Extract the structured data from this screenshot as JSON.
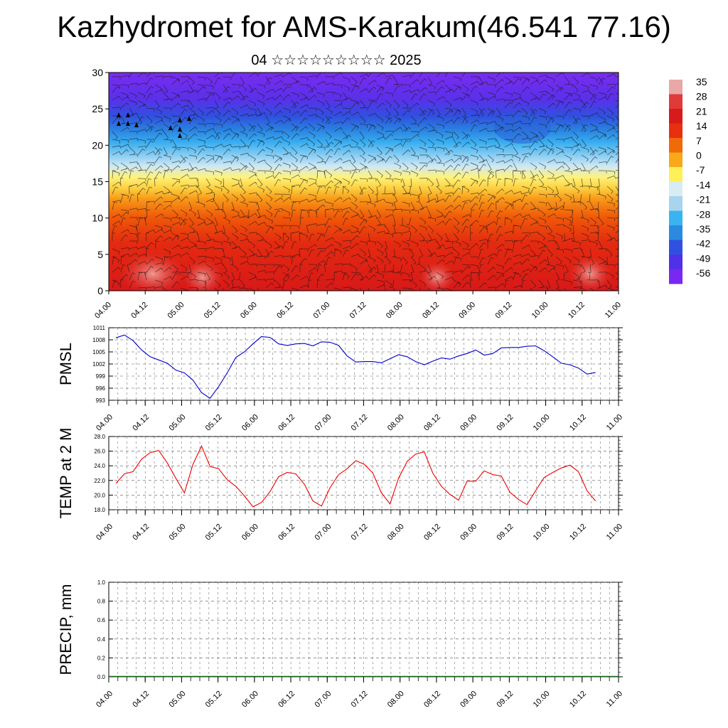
{
  "header": {
    "title": "Kazhydromet for AMS-Karakum(46.541 77.16)",
    "subtitle": "04 ☆☆☆☆☆☆☆☆☆ 2025"
  },
  "time_labels": [
    "04.00",
    "04.12",
    "05.00",
    "05.12",
    "06.00",
    "06.12",
    "07.00",
    "07.12",
    "08.00",
    "08.12",
    "09.00",
    "09.12",
    "10.00",
    "10.12",
    "11.00"
  ],
  "chart_data": [
    {
      "type": "heatmap",
      "name": "temperature-cross-section",
      "ylim": [
        0,
        30
      ],
      "yticks": [
        0,
        5,
        10,
        15,
        20,
        25,
        30
      ],
      "colorbar": {
        "labels": [
          "35",
          "28",
          "21",
          "14",
          "7",
          "0",
          "-7",
          "-14",
          "-21",
          "-28",
          "-35",
          "-42",
          "-49",
          "-56"
        ],
        "colors": [
          "#e8a8a8",
          "#e03a3a",
          "#d81a1a",
          "#e83010",
          "#f06a08",
          "#f8a818",
          "#fff05a",
          "#d8ecf4",
          "#a8d4ee",
          "#38b4f0",
          "#2a8ae0",
          "#3050e0",
          "#5030e8",
          "#7828f0"
        ]
      },
      "x_labels": [
        "04.00",
        "04.12",
        "05.00",
        "05.12",
        "06.00",
        "06.12",
        "07.00",
        "07.12",
        "08.00",
        "08.12",
        "09.00",
        "09.12",
        "10.00",
        "10.12",
        "11.00"
      ]
    },
    {
      "type": "line",
      "ylabel": "PMSL",
      "ylim": [
        993,
        1011
      ],
      "yticks": [
        993,
        996,
        999,
        1002,
        1005,
        1008,
        1011
      ],
      "line_color": "#0000cc",
      "x_labels": [
        "04.00",
        "04.12",
        "05.00",
        "05.12",
        "06.00",
        "06.12",
        "07.00",
        "07.12",
        "08.00",
        "08.12",
        "09.00",
        "09.12",
        "10.00",
        "10.12",
        "11.00"
      ],
      "values": [
        1008.5,
        1009.2,
        1007.8,
        1005.5,
        1003.8,
        1003.0,
        1002.2,
        1000.5,
        999.8,
        998.0,
        994.9,
        993.5,
        996.4,
        999.8,
        1003.6,
        1005.0,
        1007.0,
        1008.8,
        1008.6,
        1007.0,
        1006.6,
        1007.0,
        1007.1,
        1006.5,
        1007.5,
        1007.4,
        1006.6,
        1004.0,
        1002.5,
        1002.6,
        1002.6,
        1002.3,
        1003.3,
        1004.3,
        1003.8,
        1002.6,
        1001.8,
        1002.7,
        1003.5,
        1003.2,
        1004.0,
        1004.6,
        1005.5,
        1004.2,
        1004.6,
        1006.0,
        1006.1,
        1006.1,
        1006.4,
        1006.5,
        1005.3,
        1003.8,
        1002.2,
        1001.8,
        1001.0,
        999.5,
        999.9
      ]
    },
    {
      "type": "line",
      "ylabel": "TEMP at 2 M",
      "ylim": [
        18.0,
        28.0
      ],
      "yticks": [
        18.0,
        20.0,
        22.0,
        24.0,
        26.0,
        28.0
      ],
      "line_color": "#ee0000",
      "x_labels": [
        "04.00",
        "04.12",
        "05.00",
        "05.12",
        "06.00",
        "06.12",
        "07.00",
        "07.12",
        "08.00",
        "08.12",
        "09.00",
        "09.12",
        "10.00",
        "10.12",
        "11.00"
      ],
      "values": [
        21.6,
        22.9,
        23.2,
        24.9,
        25.8,
        26.1,
        24.4,
        22.3,
        20.3,
        24.2,
        26.7,
        23.9,
        23.6,
        22.1,
        21.2,
        19.9,
        18.4,
        19.0,
        20.5,
        22.5,
        23.1,
        22.9,
        21.5,
        19.2,
        18.5,
        21.0,
        22.8,
        23.6,
        24.7,
        24.2,
        23.0,
        20.3,
        18.8,
        22.3,
        24.6,
        25.6,
        25.9,
        23.0,
        21.2,
        20.1,
        19.3,
        21.9,
        21.9,
        23.3,
        22.8,
        22.6,
        20.4,
        19.4,
        18.7,
        20.6,
        22.4,
        23.1,
        23.7,
        24.1,
        23.2,
        20.6,
        19.2
      ]
    },
    {
      "type": "bar",
      "ylabel": "PRECIP, mm",
      "ylim": [
        0.0,
        1.0
      ],
      "yticks": [
        0.0,
        0.2,
        0.4,
        0.6,
        0.8,
        1.0
      ],
      "x_labels": [
        "04.00",
        "04.12",
        "05.00",
        "05.12",
        "06.00",
        "06.12",
        "07.00",
        "07.12",
        "08.00",
        "08.12",
        "09.00",
        "09.12",
        "10.00",
        "10.12",
        "11.00"
      ],
      "values": [
        0,
        0,
        0,
        0,
        0,
        0,
        0,
        0,
        0,
        0,
        0,
        0,
        0,
        0,
        0,
        0,
        0,
        0,
        0,
        0,
        0,
        0,
        0,
        0,
        0,
        0,
        0,
        0,
        0,
        0,
        0,
        0,
        0,
        0,
        0,
        0,
        0,
        0,
        0,
        0,
        0,
        0,
        0,
        0,
        0,
        0,
        0,
        0,
        0,
        0,
        0,
        0,
        0,
        0,
        0,
        0,
        0
      ]
    }
  ]
}
